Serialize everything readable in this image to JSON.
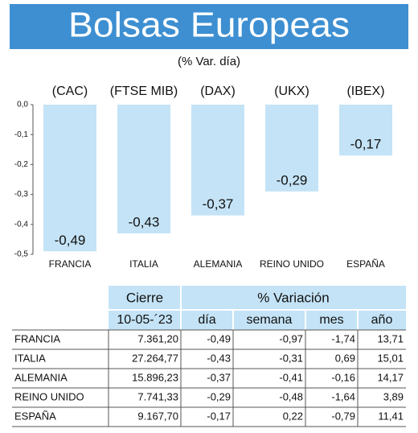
{
  "header": {
    "title": "Bolsas Europeas",
    "subtitle": "(% Var. día)"
  },
  "chart_data": {
    "type": "bar",
    "categories": [
      "FRANCIA",
      "ITALIA",
      "ALEMANIA",
      "REINO UNIDO",
      "ESPAÑA"
    ],
    "indices": [
      "(CAC)",
      "(FTSE MIB)",
      "(DAX)",
      "(UKX)",
      "(IBEX)"
    ],
    "values": [
      -0.49,
      -0.43,
      -0.37,
      -0.29,
      -0.17
    ],
    "value_labels": [
      "-0,49",
      "-0,43",
      "-0,37",
      "-0,29",
      "-0,17"
    ],
    "color": "#c4e3f6",
    "ylim": [
      0,
      -0.5
    ],
    "yticks": [
      {
        "value": 0,
        "label": "0,0"
      },
      {
        "value": -0.1,
        "label": "-0,1"
      },
      {
        "value": -0.2,
        "label": "-0,2"
      },
      {
        "value": -0.3,
        "label": "-0,3"
      },
      {
        "value": -0.4,
        "label": "-0,4"
      },
      {
        "value": -0.5,
        "label": "-0,5"
      }
    ]
  },
  "table": {
    "group_headers": [
      "Cierre",
      "% Variación"
    ],
    "columns": [
      "10-05-´23",
      "día",
      "semana",
      "mes",
      "año"
    ],
    "rows": [
      [
        "FRANCIA",
        "7.361,20",
        "-0,49",
        "-0,97",
        "-1,74",
        "13,71"
      ],
      [
        "ITALIA",
        "27.264,77",
        "-0,43",
        "-0,31",
        "0,69",
        "15,01"
      ],
      [
        "ALEMANIA",
        "15.896,23",
        "-0,37",
        "-0,41",
        "-0,16",
        "14,17"
      ],
      [
        "REINO UNIDO",
        "7.741,33",
        "-0,29",
        "-0,48",
        "-1,64",
        "3,89"
      ],
      [
        "ESPAÑA",
        "9.167,70",
        "-0,17",
        "0,22",
        "-0,79",
        "11,41"
      ]
    ]
  }
}
